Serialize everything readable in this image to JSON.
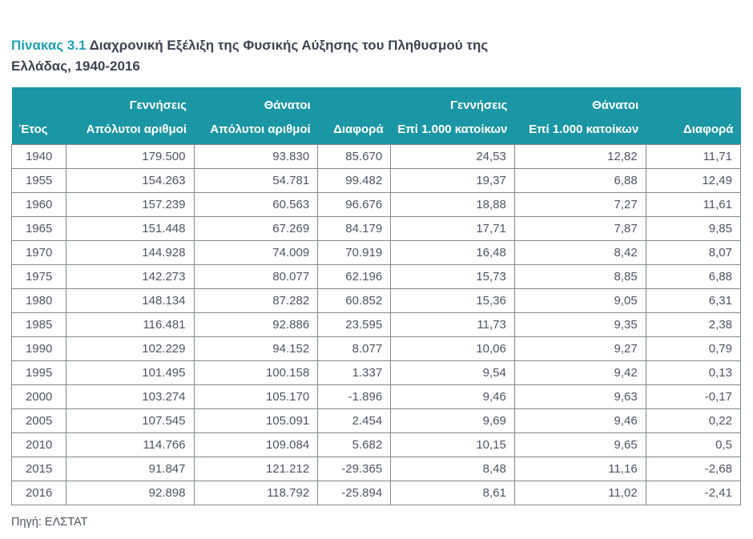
{
  "accent_color": "#1b96a4",
  "title": {
    "label": "Πίνακας 3.1",
    "line1_text": "Διαχρονική Εξέλιξη της Φυσικής Αύξησης του Πληθυσμού της",
    "line2_text": "Ελλάδας, 1940-2016"
  },
  "chart_data": {
    "type": "table",
    "title": "Πίνακας 3.1 Διαχρονική Εξέλιξη της Φυσικής Αύξησης του Πληθυσμού της Ελλάδας, 1940-2016",
    "group_labels": [
      "",
      "Γεννήσεις",
      "Θάνατοι",
      "",
      "Γεννήσεις",
      "Θάνατοι",
      ""
    ],
    "columns": [
      "Έτος",
      "Απόλυτοι αριθμοί",
      "Απόλυτοι αριθμοί",
      "Διαφορά",
      "Επί 1.000 κατοίκων",
      "Επί 1.000 κατοίκων",
      "Διαφορά"
    ],
    "rows": [
      [
        "1940",
        "179.500",
        "93.830",
        "85.670",
        "24,53",
        "12,82",
        "11,71"
      ],
      [
        "1955",
        "154.263",
        "54.781",
        "99.482",
        "19,37",
        "6,88",
        "12,49"
      ],
      [
        "1960",
        "157.239",
        "60.563",
        "96.676",
        "18,88",
        "7,27",
        "11,61"
      ],
      [
        "1965",
        "151.448",
        "67.269",
        "84.179",
        "17,71",
        "7,87",
        "9,85"
      ],
      [
        "1970",
        "144.928",
        "74.009",
        "70.919",
        "16,48",
        "8,42",
        "8,07"
      ],
      [
        "1975",
        "142.273",
        "80.077",
        "62.196",
        "15,73",
        "8,85",
        "6,88"
      ],
      [
        "1980",
        "148.134",
        "87.282",
        "60.852",
        "15,36",
        "9,05",
        "6,31"
      ],
      [
        "1985",
        "116.481",
        "92.886",
        "23.595",
        "11,73",
        "9,35",
        "2,38"
      ],
      [
        "1990",
        "102.229",
        "94.152",
        "8.077",
        "10,06",
        "9,27",
        "0,79"
      ],
      [
        "1995",
        "101.495",
        "100.158",
        "1.337",
        "9,54",
        "9,42",
        "0,13"
      ],
      [
        "2000",
        "103.274",
        "105.170",
        "-1.896",
        "9,46",
        "9,63",
        "-0,17"
      ],
      [
        "2005",
        "107.545",
        "105.091",
        "2.454",
        "9,69",
        "9,46",
        "0,22"
      ],
      [
        "2010",
        "114.766",
        "109.084",
        "5.682",
        "10,15",
        "9,65",
        "0,5"
      ],
      [
        "2015",
        "91.847",
        "121.212",
        "-29.365",
        "8,48",
        "11,16",
        "-2,68"
      ],
      [
        "2016",
        "92.898",
        "118.792",
        "-25.894",
        "8,61",
        "11,02",
        "-2,41"
      ]
    ]
  },
  "source": "Πηγή: ΕΛΣΤΑΤ"
}
